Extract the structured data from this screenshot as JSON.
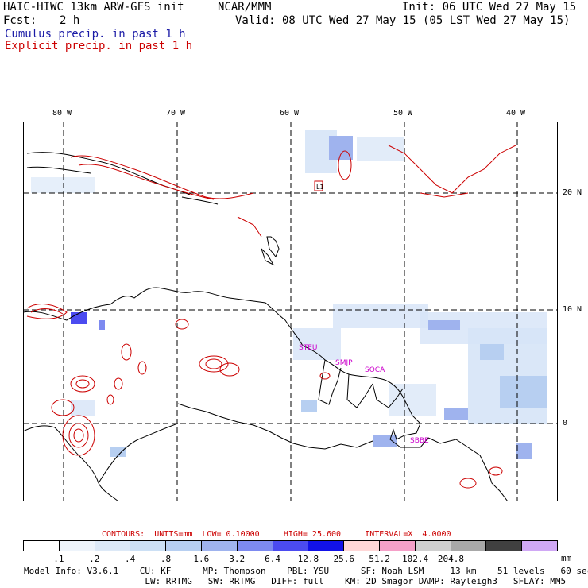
{
  "header": {
    "title_left": "HAIC-HIWC 13km ARW-GFS init",
    "title_mid": "NCAR/MMM",
    "init_label": "Init: 06 UTC Wed 27 May 15",
    "fcst_label": "Fcst:",
    "fcst_value": "2 h",
    "valid_label": "Valid: 08 UTC Wed 27 May 15 (05 LST Wed 27 May 15)",
    "cumulus_label": "Cumulus precip. in past 1 h",
    "explicit_label": "Explicit precip. in past 1 h"
  },
  "map": {
    "lon_labels": [
      "80 W",
      "70 W",
      "60 W",
      "50 W",
      "40 W"
    ],
    "lat_labels": [
      "20 N",
      "10 N",
      "0"
    ],
    "station_labels": [
      "STEU",
      "SMJP",
      "SOCA",
      "SBBE",
      "L1"
    ],
    "colors": {
      "cumulus": "#1a1aa6",
      "explicit": "#cc0000",
      "coast": "#000000",
      "station": "#cc00cc"
    }
  },
  "contour_info": {
    "contours": "CONTOURS:",
    "units": "UNITS=mm",
    "low": "LOW= 0.10000",
    "high": "HIGH= 25.600",
    "interval": "INTERVAL=X  4.0000"
  },
  "colorbar": {
    "colors": [
      "#ffffff",
      "#eef4fb",
      "#dde9f7",
      "#cce0f5",
      "#b7cff1",
      "#9fb3ee",
      "#7d8af0",
      "#4b4bf0",
      "#1212e8",
      "#ffd7d7",
      "#f5a0c8",
      "#d0d0d0",
      "#a8a8a8",
      "#404040",
      "#d0a8f5"
    ],
    "ticks": [
      ".1",
      ".2",
      ".4",
      ".8",
      "1.6",
      "3.2",
      "6.4",
      "12.8",
      "25.6",
      "51.2",
      "102.4",
      "204.8"
    ],
    "unit": "mm"
  },
  "model_info": {
    "line1": "Model Info: V3.6.1    CU: KF      MP: Thompson    PBL: YSU      SF: Noah LSM     13 km    51 levels   60 sec",
    "line2": "                       LW: RRTMG   SW: RRTMG   DIFF: full    KM: 2D Smagor DAMP: Rayleigh3   SFLAY: MM5"
  }
}
